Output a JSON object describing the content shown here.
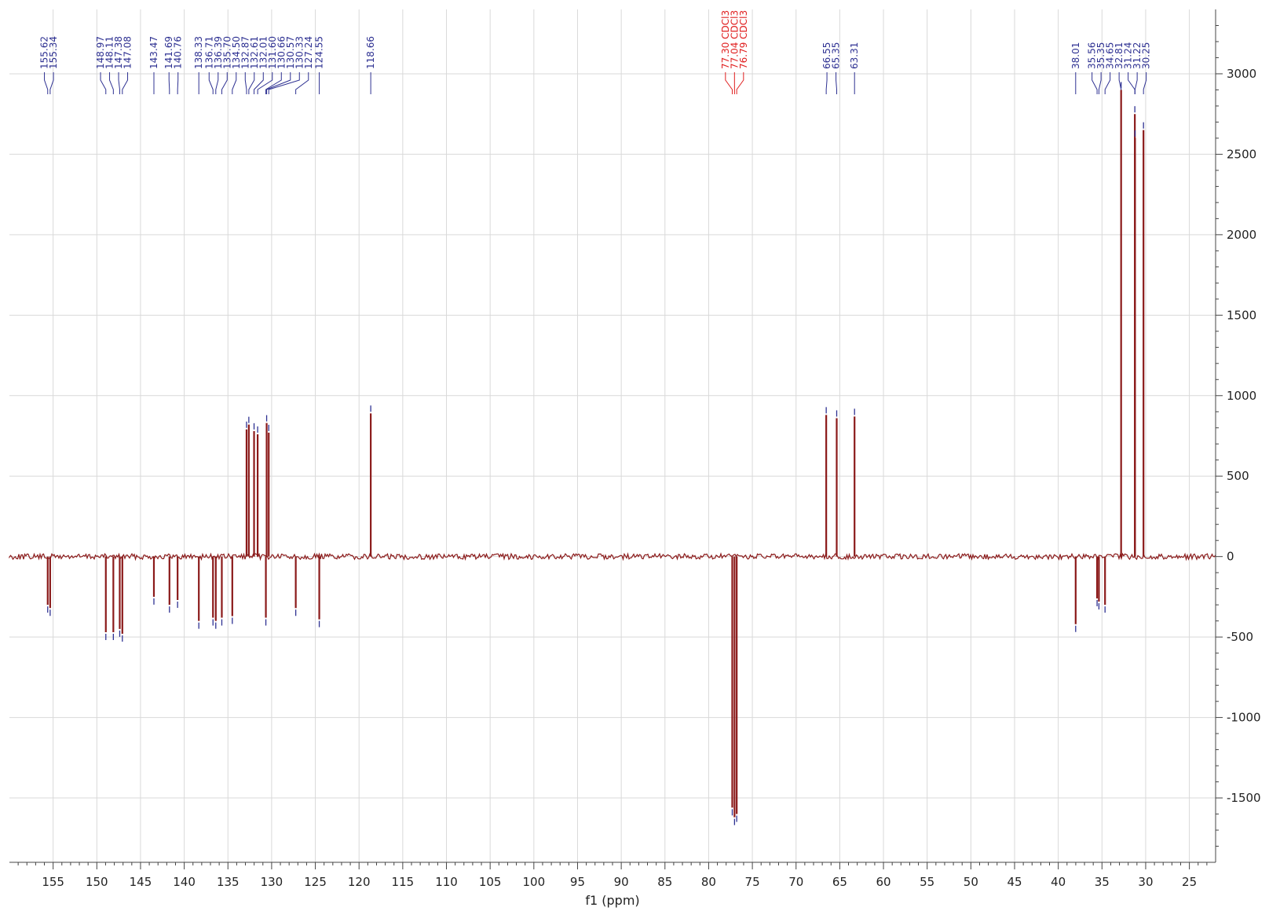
{
  "chart_data": {
    "type": "line",
    "title": "",
    "xlabel": "f1 (ppm)",
    "ylabel": "",
    "xlim": [
      160,
      22
    ],
    "ylim": [
      -1900,
      3400
    ],
    "x_reversed": true,
    "grid": true,
    "x_ticks": [
      155,
      150,
      145,
      140,
      135,
      130,
      125,
      120,
      115,
      110,
      105,
      100,
      95,
      90,
      85,
      80,
      75,
      70,
      65,
      60,
      55,
      50,
      45,
      40,
      35,
      30,
      25
    ],
    "y_ticks": [
      3000,
      2500,
      2000,
      1500,
      1000,
      500,
      0,
      -500,
      -1000,
      -1500
    ],
    "y_tick_labels": [
      "3000",
      "2500",
      "2000",
      "1500",
      "1000",
      "500",
      "0",
      "-500",
      "-1000",
      "-1500"
    ],
    "x_tick_labels": [
      "155",
      "150",
      "145",
      "140",
      "135",
      "130",
      "125",
      "120",
      "115",
      "110",
      "105",
      "100",
      "95",
      "90",
      "85",
      "80",
      "75",
      "70",
      "65",
      "60",
      "55",
      "50",
      "45",
      "40",
      "35",
      "30",
      "25"
    ],
    "spectrum_color": "#8b1a1a",
    "label_color": "#2e3192",
    "solvent_label_color": "#e02020",
    "peaks": [
      {
        "ppm": 155.62,
        "intensity": -300,
        "label": "155.62"
      },
      {
        "ppm": 155.34,
        "intensity": -320,
        "label": "155.34"
      },
      {
        "ppm": 148.97,
        "intensity": -470,
        "label": "148.97"
      },
      {
        "ppm": 148.11,
        "intensity": -470,
        "label": "148.11"
      },
      {
        "ppm": 147.38,
        "intensity": -450,
        "label": "147.38"
      },
      {
        "ppm": 147.08,
        "intensity": -480,
        "label": "147.08"
      },
      {
        "ppm": 143.47,
        "intensity": -250,
        "label": "143.47"
      },
      {
        "ppm": 141.69,
        "intensity": -300,
        "label": "141.69"
      },
      {
        "ppm": 140.76,
        "intensity": -270,
        "label": "140.76"
      },
      {
        "ppm": 138.33,
        "intensity": -400,
        "label": "138.33"
      },
      {
        "ppm": 136.71,
        "intensity": -380,
        "label": "136.71"
      },
      {
        "ppm": 136.39,
        "intensity": -400,
        "label": "136.39"
      },
      {
        "ppm": 135.7,
        "intensity": -380,
        "label": "135.70"
      },
      {
        "ppm": 134.5,
        "intensity": -370,
        "label": "134.50"
      },
      {
        "ppm": 132.87,
        "intensity": 790,
        "label": "132.87"
      },
      {
        "ppm": 132.61,
        "intensity": 820,
        "label": "132.61"
      },
      {
        "ppm": 132.01,
        "intensity": 780,
        "label": "132.01"
      },
      {
        "ppm": 131.6,
        "intensity": 760,
        "label": "131.60"
      },
      {
        "ppm": 130.66,
        "intensity": -380,
        "label": "130.66"
      },
      {
        "ppm": 130.57,
        "intensity": 830,
        "label": "130.57"
      },
      {
        "ppm": 130.33,
        "intensity": 770,
        "label": "130.33"
      },
      {
        "ppm": 127.24,
        "intensity": -320,
        "label": "127.24"
      },
      {
        "ppm": 124.55,
        "intensity": -390,
        "label": "124.55"
      },
      {
        "ppm": 118.66,
        "intensity": 890,
        "label": "118.66"
      },
      {
        "ppm": 77.3,
        "intensity": -1560,
        "label": "77.30 CDCl3",
        "solvent": true
      },
      {
        "ppm": 77.04,
        "intensity": -1620,
        "label": "77.04 CDCl3",
        "solvent": true
      },
      {
        "ppm": 76.79,
        "intensity": -1600,
        "label": "76.79 CDCl3",
        "solvent": true
      },
      {
        "ppm": 66.55,
        "intensity": 880,
        "label": "66.55"
      },
      {
        "ppm": 65.35,
        "intensity": 860,
        "label": "65.35"
      },
      {
        "ppm": 63.31,
        "intensity": 870,
        "label": "63.31"
      },
      {
        "ppm": 38.01,
        "intensity": -420,
        "label": "38.01"
      },
      {
        "ppm": 35.56,
        "intensity": -260,
        "label": "35.56"
      },
      {
        "ppm": 35.35,
        "intensity": -280,
        "label": "35.35"
      },
      {
        "ppm": 34.65,
        "intensity": -300,
        "label": "34.65"
      },
      {
        "ppm": 32.81,
        "intensity": 2900,
        "label": "32.81"
      },
      {
        "ppm": 31.24,
        "intensity": 2750,
        "label": "31.24"
      },
      {
        "ppm": 31.22,
        "intensity": 2600,
        "label": "31.22"
      },
      {
        "ppm": 30.25,
        "intensity": 2650,
        "label": "30.25"
      }
    ]
  }
}
